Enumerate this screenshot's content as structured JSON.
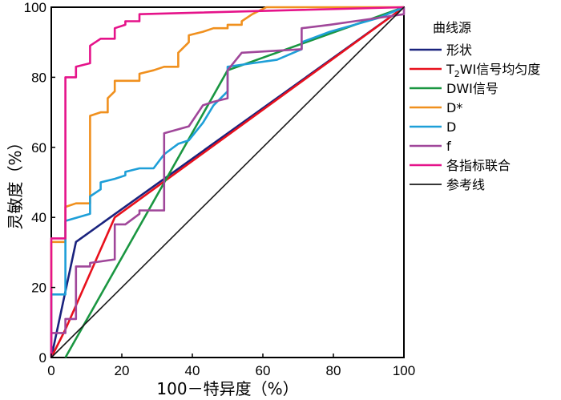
{
  "chart_data": {
    "type": "line",
    "title": "",
    "xlabel": "100－特异度（%）",
    "ylabel": "灵敏度（%）",
    "xlim": [
      0,
      100
    ],
    "ylim": [
      0,
      100
    ],
    "xticks": [
      "0",
      "20",
      "40",
      "60",
      "80",
      "100"
    ],
    "yticks": [
      "0",
      "20",
      "40",
      "60",
      "80",
      "100"
    ],
    "legend_title": "曲线源",
    "legend_position": "right",
    "series": [
      {
        "name": "形状",
        "color": "#1a237e",
        "points": [
          [
            0,
            0
          ],
          [
            7,
            33
          ],
          [
            100,
            100
          ]
        ]
      },
      {
        "name": "T2WI信号均匀度",
        "label_main": "T",
        "label_sub": "2",
        "label_rest": "WI信号均匀度",
        "color": "#e8101c",
        "points": [
          [
            0,
            0
          ],
          [
            4,
            8
          ],
          [
            18,
            40
          ],
          [
            100,
            100
          ]
        ]
      },
      {
        "name": "DWI信号",
        "color": "#1a9641",
        "points": [
          [
            4,
            0
          ],
          [
            50,
            82
          ],
          [
            100,
            100
          ]
        ]
      },
      {
        "name": "D*",
        "color": "#f0901e",
        "points": [
          [
            0,
            0
          ],
          [
            0,
            33
          ],
          [
            4,
            33
          ],
          [
            4,
            43
          ],
          [
            7,
            44
          ],
          [
            11,
            44
          ],
          [
            11,
            69
          ],
          [
            14,
            70
          ],
          [
            16,
            70
          ],
          [
            16,
            74
          ],
          [
            18,
            76
          ],
          [
            18,
            79
          ],
          [
            25,
            79
          ],
          [
            25,
            81
          ],
          [
            29,
            82
          ],
          [
            32,
            83
          ],
          [
            36,
            83
          ],
          [
            36,
            87
          ],
          [
            39,
            90
          ],
          [
            39,
            92
          ],
          [
            43,
            93
          ],
          [
            46,
            94
          ],
          [
            50,
            94
          ],
          [
            50,
            95
          ],
          [
            54,
            95
          ],
          [
            54,
            96
          ],
          [
            57,
            98
          ],
          [
            61,
            100
          ],
          [
            100,
            100
          ]
        ]
      },
      {
        "name": "D",
        "color": "#1e9fd8",
        "points": [
          [
            0,
            0
          ],
          [
            0,
            18
          ],
          [
            4,
            18
          ],
          [
            4,
            39
          ],
          [
            11,
            41
          ],
          [
            11,
            46
          ],
          [
            14,
            48
          ],
          [
            14,
            50
          ],
          [
            18,
            51
          ],
          [
            21,
            52
          ],
          [
            21,
            53
          ],
          [
            25,
            54
          ],
          [
            29,
            54
          ],
          [
            32,
            58
          ],
          [
            36,
            61
          ],
          [
            39,
            62
          ],
          [
            43,
            67
          ],
          [
            46,
            72
          ],
          [
            50,
            76
          ],
          [
            50,
            83
          ],
          [
            57,
            84
          ],
          [
            64,
            85
          ],
          [
            71,
            88
          ],
          [
            71,
            90
          ],
          [
            79,
            93
          ],
          [
            86,
            95
          ],
          [
            93,
            97
          ],
          [
            100,
            100
          ]
        ]
      },
      {
        "name": "f",
        "color": "#a0479a",
        "points": [
          [
            0,
            0
          ],
          [
            0,
            7
          ],
          [
            4,
            7
          ],
          [
            4,
            11
          ],
          [
            7,
            11
          ],
          [
            7,
            26
          ],
          [
            11,
            26
          ],
          [
            11,
            27
          ],
          [
            18,
            28
          ],
          [
            18,
            38
          ],
          [
            21,
            38
          ],
          [
            25,
            41
          ],
          [
            25,
            42
          ],
          [
            32,
            42
          ],
          [
            32,
            64
          ],
          [
            39,
            66
          ],
          [
            43,
            72
          ],
          [
            46,
            73
          ],
          [
            50,
            74
          ],
          [
            50,
            82
          ],
          [
            54,
            87
          ],
          [
            71,
            88
          ],
          [
            71,
            94
          ],
          [
            79,
            95
          ],
          [
            86,
            96
          ],
          [
            93,
            97
          ],
          [
            100,
            98
          ],
          [
            100,
            100
          ]
        ]
      },
      {
        "name": "各指标联合",
        "color": "#e5138a",
        "points": [
          [
            0,
            0
          ],
          [
            0,
            34
          ],
          [
            4,
            34
          ],
          [
            4,
            80
          ],
          [
            7,
            80
          ],
          [
            7,
            83
          ],
          [
            11,
            84
          ],
          [
            11,
            89
          ],
          [
            14,
            91
          ],
          [
            18,
            91
          ],
          [
            18,
            94
          ],
          [
            21,
            95
          ],
          [
            21,
            96
          ],
          [
            25,
            96
          ],
          [
            25,
            98
          ],
          [
            100,
            100
          ]
        ]
      },
      {
        "name": "参考线",
        "color": "#1a1a1a",
        "points": [
          [
            0,
            0
          ],
          [
            100,
            100
          ]
        ]
      }
    ]
  }
}
